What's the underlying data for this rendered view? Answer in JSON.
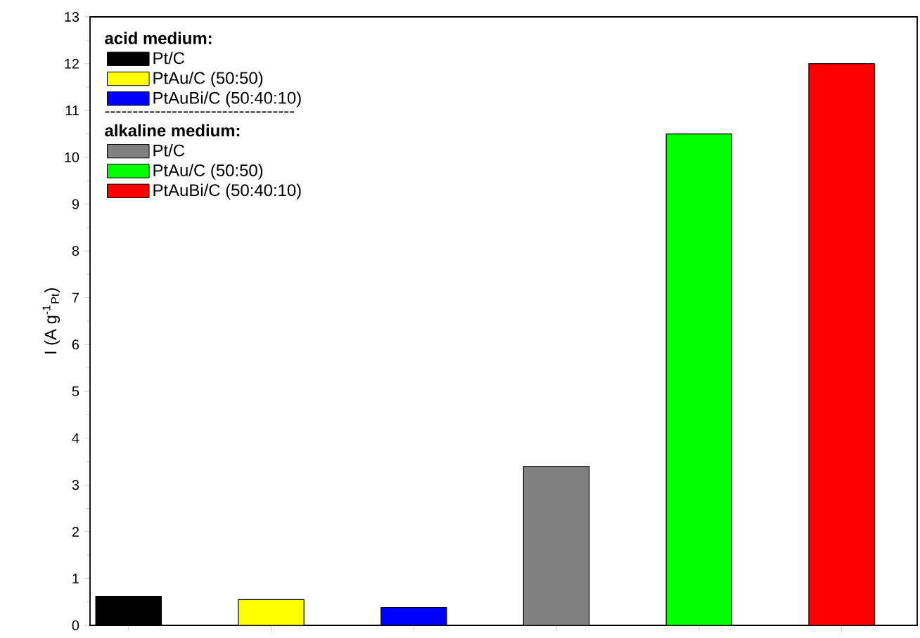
{
  "chart_data": {
    "type": "bar",
    "ylabel": "I (A g$^{-1}$$_{Pt}$)",
    "categories": [
      null,
      null,
      null,
      null,
      null,
      null
    ],
    "values": [
      0.62,
      0.55,
      0.38,
      3.4,
      10.5,
      12.0
    ],
    "colors": [
      "#000000",
      "#ffff00",
      "#0000ff",
      "#808080",
      "#00ff00",
      "#ff0000"
    ],
    "annotations": [
      "acid medium:",
      "Pt/C",
      "PtAu/C (50:50)",
      "PtAuBi/C (50:40:10)",
      "----------------------------------",
      "alkaline medium:",
      "Pt/C",
      "PtAu/C (50:50)",
      "PtAuBi/C (50:40:10)"
    ],
    "ylim": [
      0,
      13
    ],
    "yticks": [
      0,
      1,
      2,
      3,
      4,
      5,
      6,
      7,
      8,
      9,
      10,
      11,
      12,
      13
    ],
    "grid": false
  }
}
